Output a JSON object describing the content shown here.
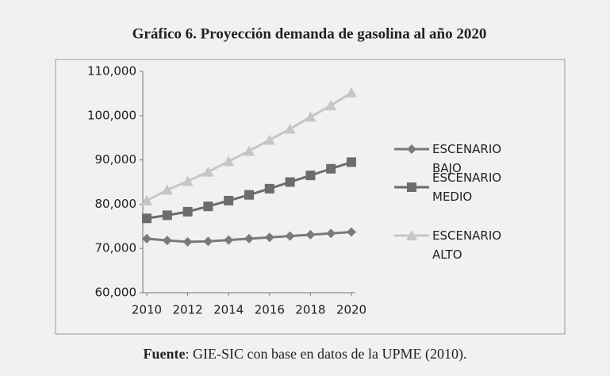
{
  "chart_data": {
    "type": "line",
    "title": "Gráfico 6. Proyección demanda de gasolina al año 2020",
    "x": [
      2010,
      2011,
      2012,
      2013,
      2014,
      2015,
      2016,
      2017,
      2018,
      2019,
      2020
    ],
    "xlim": [
      2010,
      2020
    ],
    "xticks": [
      2010,
      2012,
      2014,
      2016,
      2018,
      2020
    ],
    "ylim": [
      60000,
      110000
    ],
    "yticks": [
      {
        "value": 60000,
        "label": "60,000"
      },
      {
        "value": 70000,
        "label": "70,000"
      },
      {
        "value": 80000,
        "label": "80,000"
      },
      {
        "value": 90000,
        "label": "90,000"
      },
      {
        "value": 100000,
        "label": "100,000"
      },
      {
        "value": 110000,
        "label": "110,000"
      }
    ],
    "grid": false,
    "legend": "right",
    "series": [
      {
        "name": "ESCENARIO BAJO",
        "color": "#7a7a7a",
        "marker": "diamond",
        "values": [
          72200,
          71800,
          71500,
          71600,
          71900,
          72200,
          72500,
          72800,
          73100,
          73400,
          73700
        ]
      },
      {
        "name": "ESCENARIO MEDIO",
        "color": "#6c6c6c",
        "marker": "square",
        "values": [
          76800,
          77500,
          78300,
          79500,
          80800,
          82100,
          83500,
          85000,
          86500,
          88000,
          89500
        ]
      },
      {
        "name": "ESCENARIO ALTO",
        "color": "#c6c6c6",
        "marker": "triangle",
        "values": [
          80800,
          83200,
          85200,
          87300,
          89700,
          92000,
          94500,
          97000,
          99700,
          102300,
          105200
        ]
      }
    ],
    "source": {
      "label": "Fuente",
      "text": ": GIE-SIC con base en datos de la UPME (2010)."
    }
  }
}
